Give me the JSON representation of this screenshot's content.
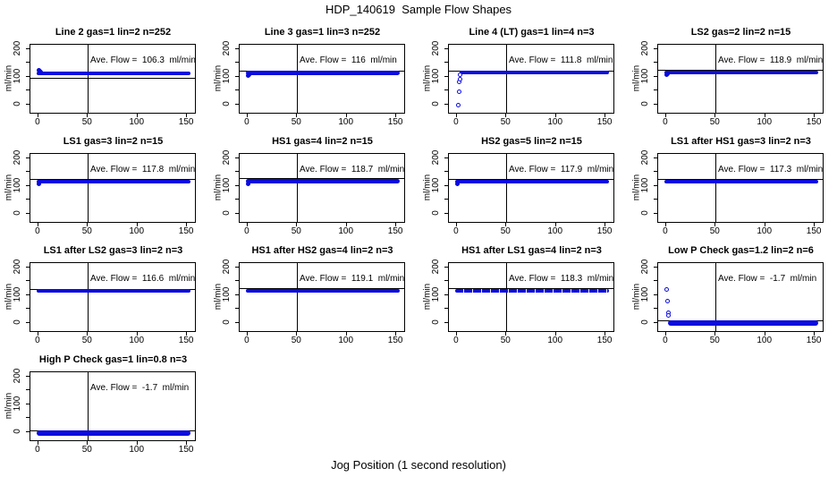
{
  "page_title": "HDP_140619  Sample Flow Shapes",
  "bottom_axis_label": "Jog Position (1 second resolution)",
  "y_axis_label": "ml/min",
  "colors": {
    "points": "#0b0bdf",
    "axis_lines": "#000000",
    "background": "#ffffff"
  },
  "axes": {
    "xlim": [
      -8,
      158
    ],
    "ylim": [
      -30,
      215
    ],
    "x_ticks": [
      "0",
      "50",
      "100",
      "150"
    ],
    "x_tick_values": [
      0,
      50,
      100,
      150
    ],
    "y_tick_values": [
      0,
      50,
      100,
      150,
      200
    ],
    "y_tick_labels": [
      "0",
      "100",
      "200"
    ],
    "y_tick_label_values": [
      0,
      100,
      200
    ],
    "vline_x": 50
  },
  "chart_data": [
    {
      "type": "scatter",
      "title": "Line 2 gas=1 lin=2 n=252",
      "annotation": "Ave. Flow =  106.3  ml/min",
      "ave_flow_ml_min": 106.3,
      "x_range": [
        0,
        152
      ],
      "steady_band_ml_min": [
        104,
        117
      ],
      "ref_line_y": 97,
      "startup_points": [
        [
          1,
          122
        ],
        [
          2,
          119
        ],
        [
          3,
          116
        ]
      ],
      "startup_marker": "filled",
      "sparse": false
    },
    {
      "type": "scatter",
      "title": "Line 3 gas=1 lin=3 n=252",
      "annotation": "Ave. Flow =  116  ml/min",
      "ave_flow_ml_min": 116,
      "x_range": [
        0,
        152
      ],
      "steady_band_ml_min": [
        107,
        120
      ],
      "ref_line_y": 122,
      "startup_points": [
        [
          1,
          103
        ],
        [
          2,
          106
        ]
      ],
      "startup_marker": "filled",
      "sparse": false
    },
    {
      "type": "scatter",
      "title": "Line 4 (LT) gas=1 lin=4 n=3",
      "annotation": "Ave. Flow =  111.8  ml/min",
      "ave_flow_ml_min": 111.8,
      "x_range": [
        5,
        152
      ],
      "steady_band_ml_min": [
        108,
        120
      ],
      "ref_line_y": 122,
      "startup_points": [
        [
          2,
          -3
        ],
        [
          3,
          45
        ],
        [
          3,
          80
        ],
        [
          3.5,
          90
        ],
        [
          4,
          104
        ]
      ],
      "startup_marker": "open",
      "sparse": false
    },
    {
      "type": "scatter",
      "title": "LS2 gas=2 lin=2 n=15",
      "annotation": "Ave. Flow =  118.9  ml/min",
      "ave_flow_ml_min": 118.9,
      "x_range": [
        0,
        152
      ],
      "steady_band_ml_min": [
        110,
        123
      ],
      "ref_line_y": 126,
      "startup_points": [
        [
          1,
          105
        ],
        [
          2,
          109
        ]
      ],
      "startup_marker": "filled",
      "sparse": false
    },
    {
      "type": "scatter",
      "title": "LS1 gas=3 lin=2 n=15",
      "annotation": "Ave. Flow =  117.8  ml/min",
      "ave_flow_ml_min": 117.8,
      "x_range": [
        0,
        152
      ],
      "steady_band_ml_min": [
        109,
        122
      ],
      "ref_line_y": 125,
      "startup_points": [
        [
          1,
          107
        ]
      ],
      "startup_marker": "filled",
      "sparse": false
    },
    {
      "type": "scatter",
      "title": "HS1 gas=4 lin=2 n=15",
      "annotation": "Ave. Flow =  118.7  ml/min",
      "ave_flow_ml_min": 118.7,
      "x_range": [
        0,
        152
      ],
      "steady_band_ml_min": [
        107,
        124
      ],
      "ref_line_y": 127,
      "startup_points": [
        [
          1,
          106
        ]
      ],
      "startup_marker": "filled",
      "sparse": false
    },
    {
      "type": "scatter",
      "title": "HS2 gas=5 lin=2 n=15",
      "annotation": "Ave. Flow =  117.9  ml/min",
      "ave_flow_ml_min": 117.9,
      "x_range": [
        0,
        152
      ],
      "steady_band_ml_min": [
        108,
        122
      ],
      "ref_line_y": 125,
      "startup_points": [
        [
          1,
          106
        ]
      ],
      "startup_marker": "filled",
      "sparse": false
    },
    {
      "type": "scatter",
      "title": "LS1 after HS1 gas=3 lin=2 n=3",
      "annotation": "Ave. Flow =  117.3  ml/min",
      "ave_flow_ml_min": 117.3,
      "x_range": [
        0,
        152
      ],
      "steady_band_ml_min": [
        110,
        122
      ],
      "ref_line_y": 125,
      "startup_points": [],
      "startup_marker": "filled",
      "sparse": false
    },
    {
      "type": "scatter",
      "title": "LS1 after LS2 gas=3 lin=2 n=3",
      "annotation": "Ave. Flow =  116.6  ml/min",
      "ave_flow_ml_min": 116.6,
      "x_range": [
        0,
        152
      ],
      "steady_band_ml_min": [
        108,
        121
      ],
      "ref_line_y": 123,
      "startup_points": [],
      "startup_marker": "filled",
      "sparse": false
    },
    {
      "type": "scatter",
      "title": "HS1 after HS2 gas=4 lin=2 n=3",
      "annotation": "Ave. Flow =  119.1  ml/min",
      "ave_flow_ml_min": 119.1,
      "x_range": [
        0,
        152
      ],
      "steady_band_ml_min": [
        110,
        123
      ],
      "ref_line_y": 126,
      "startup_points": [],
      "startup_marker": "filled",
      "sparse": false
    },
    {
      "type": "scatter",
      "title": "HS1 after LS1 gas=4 lin=2 n=3",
      "annotation": "Ave. Flow =  118.3  ml/min",
      "ave_flow_ml_min": 118.3,
      "x_range": [
        0,
        152
      ],
      "steady_band_ml_min": [
        110,
        123
      ],
      "ref_line_y": 126,
      "startup_points": [],
      "startup_marker": "filled",
      "sparse": true
    },
    {
      "type": "scatter",
      "title": "Low P Check gas=1.2 lin=2 n=6",
      "annotation": "Ave. Flow =  -1.7  ml/min",
      "ave_flow_ml_min": -1.7,
      "x_range": [
        4,
        152
      ],
      "steady_band_ml_min": [
        -10,
        8
      ],
      "ref_line_y": 10,
      "startup_points": [
        [
          1,
          118
        ],
        [
          2,
          75
        ],
        [
          3,
          35
        ],
        [
          3,
          25
        ]
      ],
      "startup_marker": "open",
      "sparse": false
    },
    {
      "type": "scatter",
      "title": "High P Check gas=1 lin=0.8 n=3",
      "annotation": "Ave. Flow =  -1.7  ml/min",
      "ave_flow_ml_min": -1.7,
      "x_range": [
        0,
        152
      ],
      "steady_band_ml_min": [
        -13,
        4
      ],
      "ref_line_y": 6,
      "startup_points": [],
      "startup_marker": "filled",
      "sparse": false
    }
  ]
}
